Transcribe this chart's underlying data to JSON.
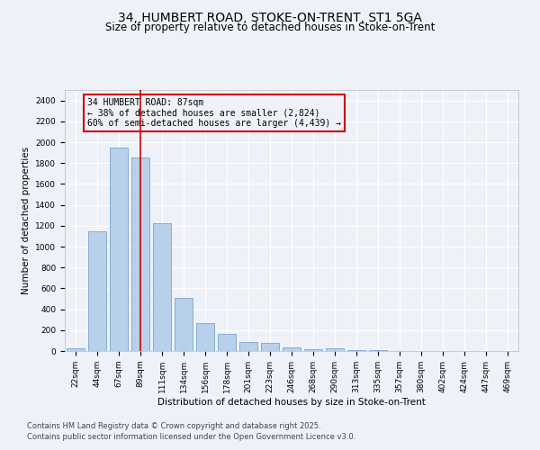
{
  "title_line1": "34, HUMBERT ROAD, STOKE-ON-TRENT, ST1 5GA",
  "title_line2": "Size of property relative to detached houses in Stoke-on-Trent",
  "xlabel": "Distribution of detached houses by size in Stoke-on-Trent",
  "ylabel": "Number of detached properties",
  "categories": [
    "22sqm",
    "44sqm",
    "67sqm",
    "89sqm",
    "111sqm",
    "134sqm",
    "156sqm",
    "178sqm",
    "201sqm",
    "223sqm",
    "246sqm",
    "268sqm",
    "290sqm",
    "313sqm",
    "335sqm",
    "357sqm",
    "380sqm",
    "402sqm",
    "424sqm",
    "447sqm",
    "469sqm"
  ],
  "values": [
    30,
    1150,
    1950,
    1850,
    1220,
    510,
    270,
    165,
    85,
    75,
    35,
    20,
    25,
    5,
    5,
    2,
    2,
    1,
    0,
    0,
    0
  ],
  "bar_color": "#b8d0ea",
  "bar_edge_color": "#6699cc",
  "vline_x_index": 3,
  "vline_color": "#cc0000",
  "annotation_text": "34 HUMBERT ROAD: 87sqm\n← 38% of detached houses are smaller (2,824)\n60% of semi-detached houses are larger (4,439) →",
  "annotation_box_color": "#cc0000",
  "ylim": [
    0,
    2500
  ],
  "yticks": [
    0,
    200,
    400,
    600,
    800,
    1000,
    1200,
    1400,
    1600,
    1800,
    2000,
    2200,
    2400
  ],
  "footnote1": "Contains HM Land Registry data © Crown copyright and database right 2025.",
  "footnote2": "Contains public sector information licensed under the Open Government Licence v3.0.",
  "background_color": "#eef2f8",
  "grid_color": "#ffffff",
  "title_fontsize": 10,
  "subtitle_fontsize": 8.5,
  "axis_label_fontsize": 7.5,
  "tick_fontsize": 6.5,
  "annotation_fontsize": 7,
  "footnote_fontsize": 6
}
